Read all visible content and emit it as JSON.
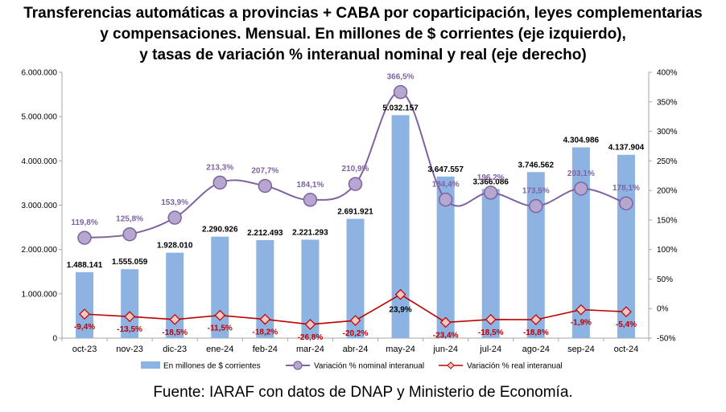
{
  "chart_data": {
    "type": "bar+line",
    "title_lines": [
      "Transferencias automáticas a provincias + CABA por coparticipación, leyes complementarias",
      "y compensaciones. Mensual. En millones de $ corrientes (eje izquierdo),",
      "y tasas de variación % interanual nominal y real (eje derecho)"
    ],
    "categories": [
      "oct-23",
      "nov-23",
      "dic-23",
      "ene-24",
      "feb-24",
      "mar-24",
      "abr-24",
      "may-24",
      "jun-24",
      "jul-24",
      "ago-24",
      "sep-24",
      "oct-24"
    ],
    "left_axis": {
      "min": 0,
      "max": 6000000,
      "step": 1000000,
      "tick_labels": [
        "0",
        "1.000.000",
        "2.000.000",
        "3.000.000",
        "4.000.000",
        "5.000.000",
        "6.000.000"
      ]
    },
    "right_axis": {
      "min": -50,
      "max": 400,
      "step": 50,
      "tick_labels": [
        "-50%",
        "0%",
        "50%",
        "100%",
        "150%",
        "200%",
        "250%",
        "300%",
        "350%",
        "400%"
      ]
    },
    "series": [
      {
        "name": "En millones de $ corrientes",
        "kind": "bar",
        "axis": "left",
        "color": "#8db3e2",
        "values": [
          1488141,
          1555059,
          1928010,
          2290926,
          2212493,
          2221293,
          2691921,
          5032157,
          3647557,
          3366086,
          3746562,
          4304986,
          4137904
        ],
        "labels": [
          "1.488.141",
          "1.555.059",
          "1.928.010",
          "2.290.926",
          "2.212.493",
          "2.221.293",
          "2.691.921",
          "5.032.157",
          "3.647.557",
          "3.366.086",
          "3.746.562",
          "4.304.986",
          "4.137.904"
        ]
      },
      {
        "name": "Variación % nominal interanual",
        "kind": "line",
        "axis": "right",
        "color": "#7f63a1",
        "marker_fill": "#b5a7cf",
        "values": [
          119.8,
          125.8,
          153.9,
          213.3,
          207.7,
          184.1,
          210.9,
          366.5,
          184.4,
          196.2,
          173.5,
          203.1,
          178.1
        ],
        "labels": [
          "119,8%",
          "125,8%",
          "153,9%",
          "213,3%",
          "207,7%",
          "184,1%",
          "210,9%",
          "366,5%",
          "184,4%",
          "196,2%",
          "173,5%",
          "203,1%",
          "178,1%"
        ]
      },
      {
        "name": "Variación % real interanual",
        "kind": "line",
        "axis": "right",
        "color": "#c00000",
        "marker_fill": "#f4c7c3",
        "values": [
          -9.4,
          -13.5,
          -18.5,
          -11.5,
          -18.2,
          -26.8,
          -20.2,
          23.9,
          -23.4,
          -18.5,
          -18.8,
          -1.9,
          -5.4
        ],
        "labels": [
          "-9,4%",
          "-13,5%",
          "-18,5%",
          "-11,5%",
          "-18,2%",
          "-26,8%",
          "-20,2%",
          "23,9%",
          "-23,4%",
          "-18,5%",
          "-18,8%",
          "-1,9%",
          "-5,4%"
        ]
      }
    ],
    "grid": false,
    "legend_position": "bottom"
  },
  "source": "Fuente: IARAF con datos de DNAP y Ministerio de Economía."
}
